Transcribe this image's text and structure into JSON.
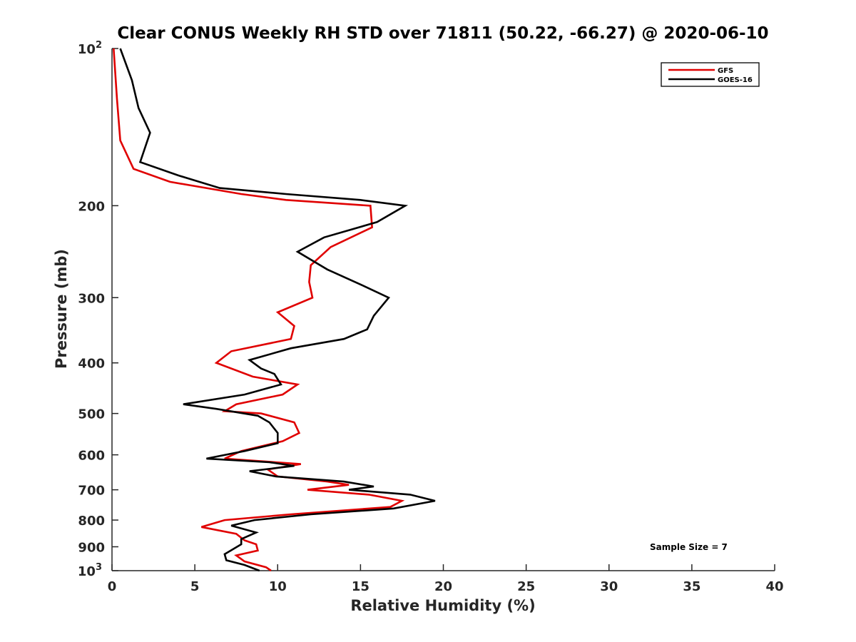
{
  "chart_data": {
    "type": "line",
    "title": "Clear CONUS Weekly RH STD over 71811 (50.22, -66.27) @ 2020-06-10",
    "xlabel": "Relative Humidity (%)",
    "ylabel": "Pressure (mb)",
    "xlim": [
      0,
      40
    ],
    "ylim": [
      100,
      1000
    ],
    "y_scale": "log",
    "y_reversed": true,
    "x_ticks": [
      "0",
      "5",
      "10",
      "15",
      "20",
      "25",
      "30",
      "35",
      "40"
    ],
    "y_ticks": [
      {
        "value": 100,
        "base": "10",
        "exp": "2"
      },
      {
        "value": 200,
        "label": "200"
      },
      {
        "value": 300,
        "label": "300"
      },
      {
        "value": 400,
        "label": "400"
      },
      {
        "value": 500,
        "label": "500"
      },
      {
        "value": 600,
        "label": "600"
      },
      {
        "value": 700,
        "label": "700"
      },
      {
        "value": 800,
        "label": "800"
      },
      {
        "value": 900,
        "label": "900"
      },
      {
        "value": 1000,
        "base": "10",
        "exp": "3"
      }
    ],
    "grid": false,
    "legend_position": "top-right",
    "annotation": "Sample Size = 7",
    "series": [
      {
        "name": "GFS",
        "color": "#e00000",
        "points": [
          [
            0.1,
            100
          ],
          [
            0.3,
            125
          ],
          [
            0.5,
            150
          ],
          [
            1.3,
            170
          ],
          [
            3.5,
            180
          ],
          [
            7.8,
            190
          ],
          [
            10.5,
            195
          ],
          [
            15.6,
            200
          ],
          [
            15.7,
            220
          ],
          [
            13.2,
            240
          ],
          [
            12.0,
            260
          ],
          [
            11.9,
            280
          ],
          [
            12.1,
            300
          ],
          [
            10.0,
            320
          ],
          [
            11.0,
            340
          ],
          [
            10.8,
            360
          ],
          [
            7.2,
            380
          ],
          [
            6.3,
            400
          ],
          [
            8.5,
            425
          ],
          [
            11.2,
            440
          ],
          [
            10.3,
            460
          ],
          [
            7.5,
            480
          ],
          [
            6.8,
            495
          ],
          [
            9.0,
            500
          ],
          [
            11.0,
            520
          ],
          [
            11.3,
            545
          ],
          [
            10.3,
            565
          ],
          [
            7.8,
            590
          ],
          [
            6.8,
            610
          ],
          [
            11.4,
            625
          ],
          [
            9.4,
            640
          ],
          [
            10.0,
            660
          ],
          [
            13.0,
            675
          ],
          [
            14.3,
            685
          ],
          [
            11.8,
            700
          ],
          [
            15.5,
            715
          ],
          [
            17.5,
            735
          ],
          [
            16.8,
            755
          ],
          [
            10.8,
            780
          ],
          [
            6.8,
            800
          ],
          [
            5.4,
            825
          ],
          [
            7.5,
            850
          ],
          [
            8.0,
            875
          ],
          [
            8.7,
            890
          ],
          [
            8.8,
            915
          ],
          [
            7.5,
            935
          ],
          [
            8.0,
            960
          ],
          [
            9.3,
            985
          ],
          [
            9.6,
            1000
          ]
        ]
      },
      {
        "name": "GOES-16",
        "color": "#000000",
        "points": [
          [
            0.5,
            100
          ],
          [
            1.2,
            115
          ],
          [
            1.6,
            130
          ],
          [
            2.3,
            145
          ],
          [
            1.7,
            165
          ],
          [
            4.0,
            175
          ],
          [
            6.5,
            185
          ],
          [
            10.5,
            190
          ],
          [
            15.0,
            195
          ],
          [
            17.7,
            200
          ],
          [
            16.0,
            215
          ],
          [
            12.8,
            230
          ],
          [
            11.2,
            245
          ],
          [
            13.0,
            265
          ],
          [
            15.2,
            285
          ],
          [
            16.7,
            300
          ],
          [
            15.8,
            325
          ],
          [
            15.4,
            345
          ],
          [
            14.0,
            360
          ],
          [
            10.8,
            375
          ],
          [
            8.3,
            395
          ],
          [
            9.0,
            410
          ],
          [
            9.8,
            420
          ],
          [
            10.2,
            440
          ],
          [
            8.0,
            460
          ],
          [
            4.3,
            480
          ],
          [
            6.3,
            490
          ],
          [
            8.8,
            505
          ],
          [
            9.5,
            520
          ],
          [
            10.0,
            545
          ],
          [
            10.0,
            570
          ],
          [
            8.0,
            590
          ],
          [
            5.7,
            610
          ],
          [
            9.5,
            620
          ],
          [
            11.0,
            630
          ],
          [
            8.3,
            645
          ],
          [
            9.9,
            660
          ],
          [
            14.0,
            675
          ],
          [
            15.8,
            690
          ],
          [
            14.3,
            700
          ],
          [
            18.0,
            715
          ],
          [
            19.5,
            735
          ],
          [
            17.0,
            760
          ],
          [
            12.0,
            780
          ],
          [
            8.6,
            800
          ],
          [
            7.2,
            820
          ],
          [
            8.7,
            845
          ],
          [
            7.8,
            870
          ],
          [
            7.8,
            890
          ],
          [
            7.3,
            910
          ],
          [
            6.8,
            930
          ],
          [
            6.9,
            955
          ],
          [
            8.0,
            975
          ],
          [
            8.9,
            1000
          ]
        ]
      }
    ]
  }
}
